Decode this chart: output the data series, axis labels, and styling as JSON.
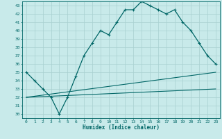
{
  "title": "",
  "xlabel": "Humidex (Indice chaleur)",
  "ylabel": "",
  "bg_color": "#c8eaea",
  "line_color": "#006666",
  "grid_color": "#a8d0d0",
  "xlim": [
    -0.5,
    23.5
  ],
  "ylim": [
    29.5,
    43.5
  ],
  "xticks": [
    0,
    1,
    2,
    3,
    4,
    5,
    6,
    7,
    8,
    9,
    10,
    11,
    12,
    13,
    14,
    15,
    16,
    17,
    18,
    19,
    20,
    21,
    22,
    23
  ],
  "yticks": [
    30,
    31,
    32,
    33,
    34,
    35,
    36,
    37,
    38,
    39,
    40,
    41,
    42,
    43
  ],
  "curve1_x": [
    0,
    1,
    2,
    3,
    4,
    5,
    6,
    7,
    8,
    9,
    10,
    11,
    12,
    13,
    14,
    15,
    16,
    17,
    18,
    19,
    20,
    21,
    22,
    23
  ],
  "curve1_y": [
    35.0,
    34.0,
    33.0,
    32.0,
    30.0,
    32.0,
    34.5,
    37.0,
    38.5,
    40.0,
    39.5,
    41.0,
    42.5,
    42.5,
    43.5,
    43.0,
    42.5,
    42.0,
    42.5,
    41.0,
    40.0,
    38.5,
    37.0,
    36.0
  ],
  "line2_x": [
    0,
    23
  ],
  "line2_y": [
    32.0,
    35.0
  ],
  "line3_x": [
    0,
    23
  ],
  "line3_y": [
    32.0,
    33.0
  ]
}
